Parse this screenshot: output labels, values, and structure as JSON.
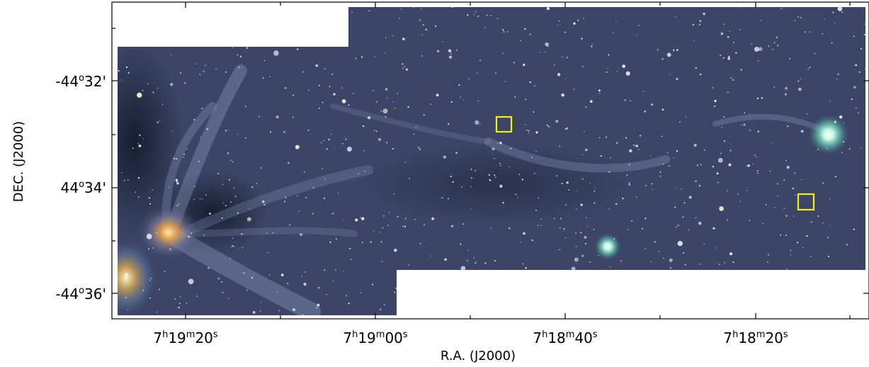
{
  "image": {
    "kind": "astronomical sky image (color composite) with WCS coordinate frame",
    "background_color": "#3c4566",
    "box_color": "#f2ef1a",
    "frame_color": "#000000"
  },
  "axes": {
    "xlabel": "R.A. (J2000)",
    "ylabel": "DEC. (J2000)",
    "x_ticks": [
      {
        "label": "7h19m20s",
        "h": "7",
        "m": "19",
        "s": "20"
      },
      {
        "label": "7h19m00s",
        "h": "7",
        "m": "19",
        "s": "00"
      },
      {
        "label": "7h18m40s",
        "h": "7",
        "m": "18",
        "s": "40"
      },
      {
        "label": "7h18m20s",
        "h": "7",
        "m": "18",
        "s": "20"
      }
    ],
    "y_ticks": [
      {
        "label": "-44°32'",
        "deg": "-44",
        "min": "32'"
      },
      {
        "label": "44°34'",
        "deg": "44",
        "min": "34'"
      },
      {
        "label": "-44°36'",
        "deg": "-44",
        "min": "36'"
      }
    ]
  },
  "markers": [
    {
      "name": "marker-box-upper",
      "shape": "square",
      "color": "#f2ef1a"
    },
    {
      "name": "marker-box-right",
      "shape": "square",
      "color": "#f2ef1a"
    }
  ]
}
